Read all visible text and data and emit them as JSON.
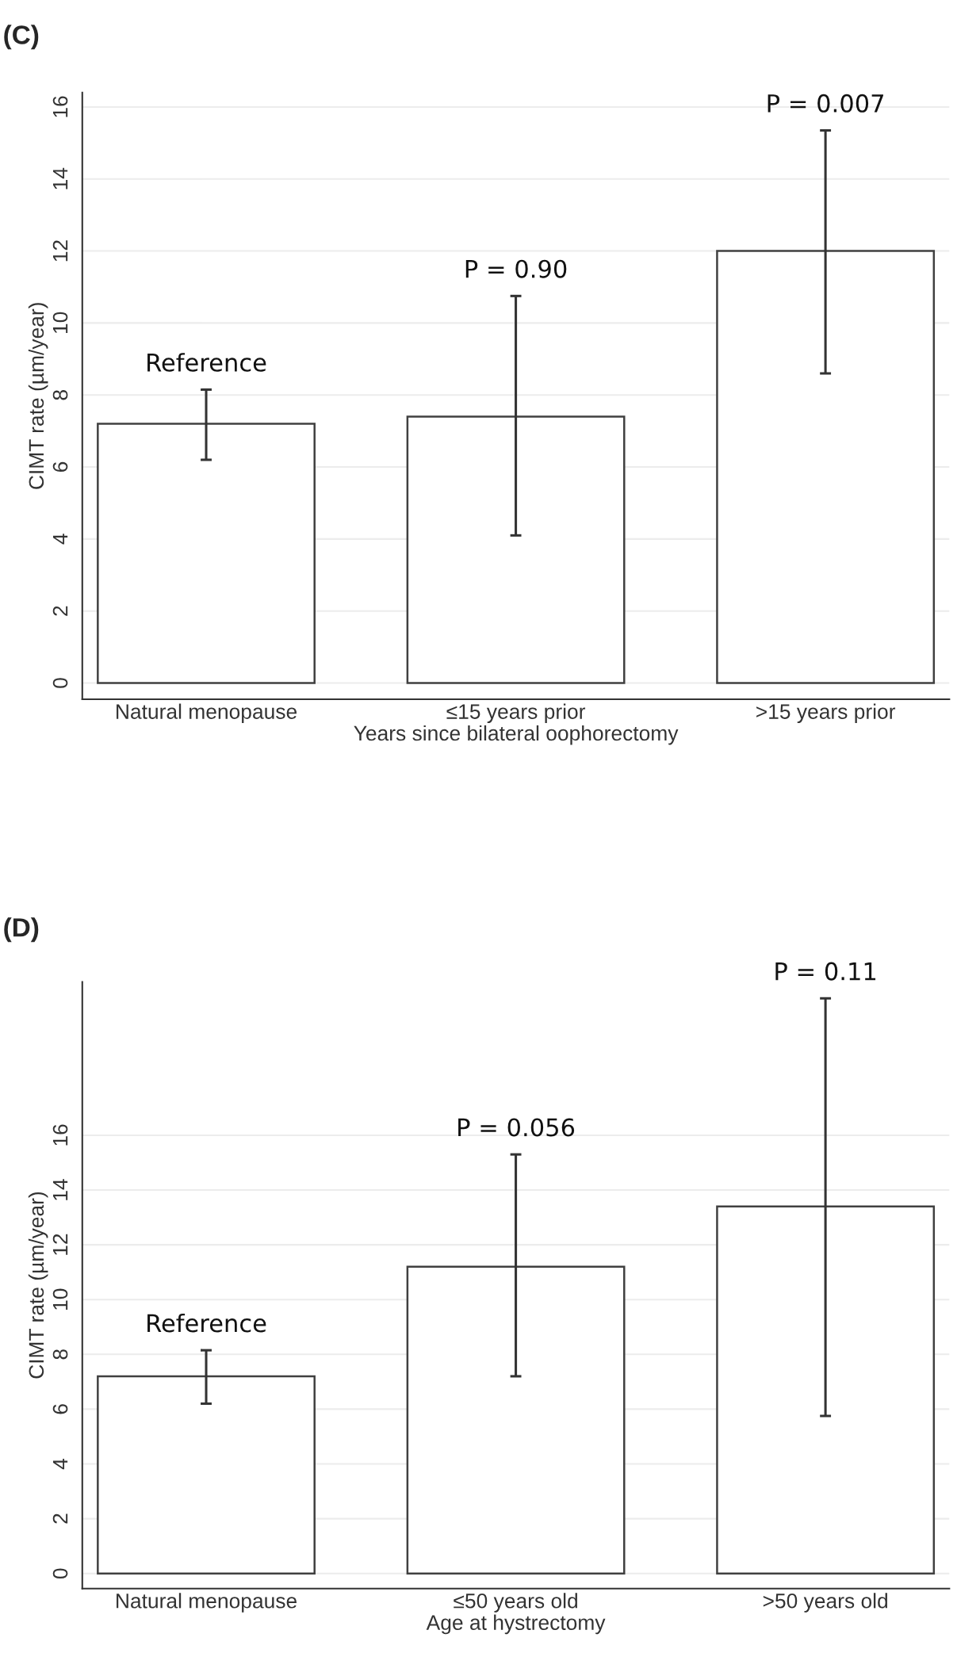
{
  "chart_data": [
    {
      "type": "bar",
      "title": "(C)",
      "xlabel": "Years since bilateral oophorectomy",
      "ylabel": "CIMT rate (µm/year)",
      "categories": [
        "Natural menopause",
        "≤15 years prior",
        ">15 years prior"
      ],
      "values": [
        7.2,
        7.4,
        12.0
      ],
      "errors": [
        [
          6.2,
          8.15
        ],
        [
          4.1,
          10.75
        ],
        [
          8.6,
          15.35
        ]
      ],
      "color": "#ffffff",
      "ylim": [
        -0.45,
        16.4
      ],
      "yticks": [
        0,
        2,
        4,
        6,
        8,
        10,
        12,
        14,
        16
      ],
      "grid": "y",
      "annotations": [
        {
          "text": "Reference",
          "x": "Natural menopause",
          "y": 8.15
        },
        {
          "text": "P = 0.90",
          "x": "≤15 years prior",
          "y": 10.75
        },
        {
          "text": "P = 0.007",
          "x": ">15 years prior",
          "y": 15.35
        }
      ]
    },
    {
      "type": "bar",
      "title": "(D)",
      "xlabel": "Age at hystrectomy",
      "ylabel": "CIMT rate (µm/year)",
      "categories": [
        "Natural menopause",
        "≤50 years old",
        ">50 years old"
      ],
      "values": [
        7.2,
        11.2,
        13.4
      ],
      "errors": [
        [
          6.2,
          8.15
        ],
        [
          7.2,
          15.3
        ],
        [
          5.75,
          21.0
        ]
      ],
      "color": "#ffffff",
      "ylim": [
        -0.55,
        21.6
      ],
      "yticks": [
        0,
        2,
        4,
        6,
        8,
        10,
        12,
        14,
        16
      ],
      "grid": "y",
      "annotations": [
        {
          "text": "Reference",
          "x": "Natural menopause",
          "y": 8.15
        },
        {
          "text": "P = 0.056",
          "x": "≤50 years old",
          "y": 15.3
        },
        {
          "text": "P = 0.11",
          "x": ">50 years old",
          "y": 21.0
        }
      ]
    }
  ]
}
